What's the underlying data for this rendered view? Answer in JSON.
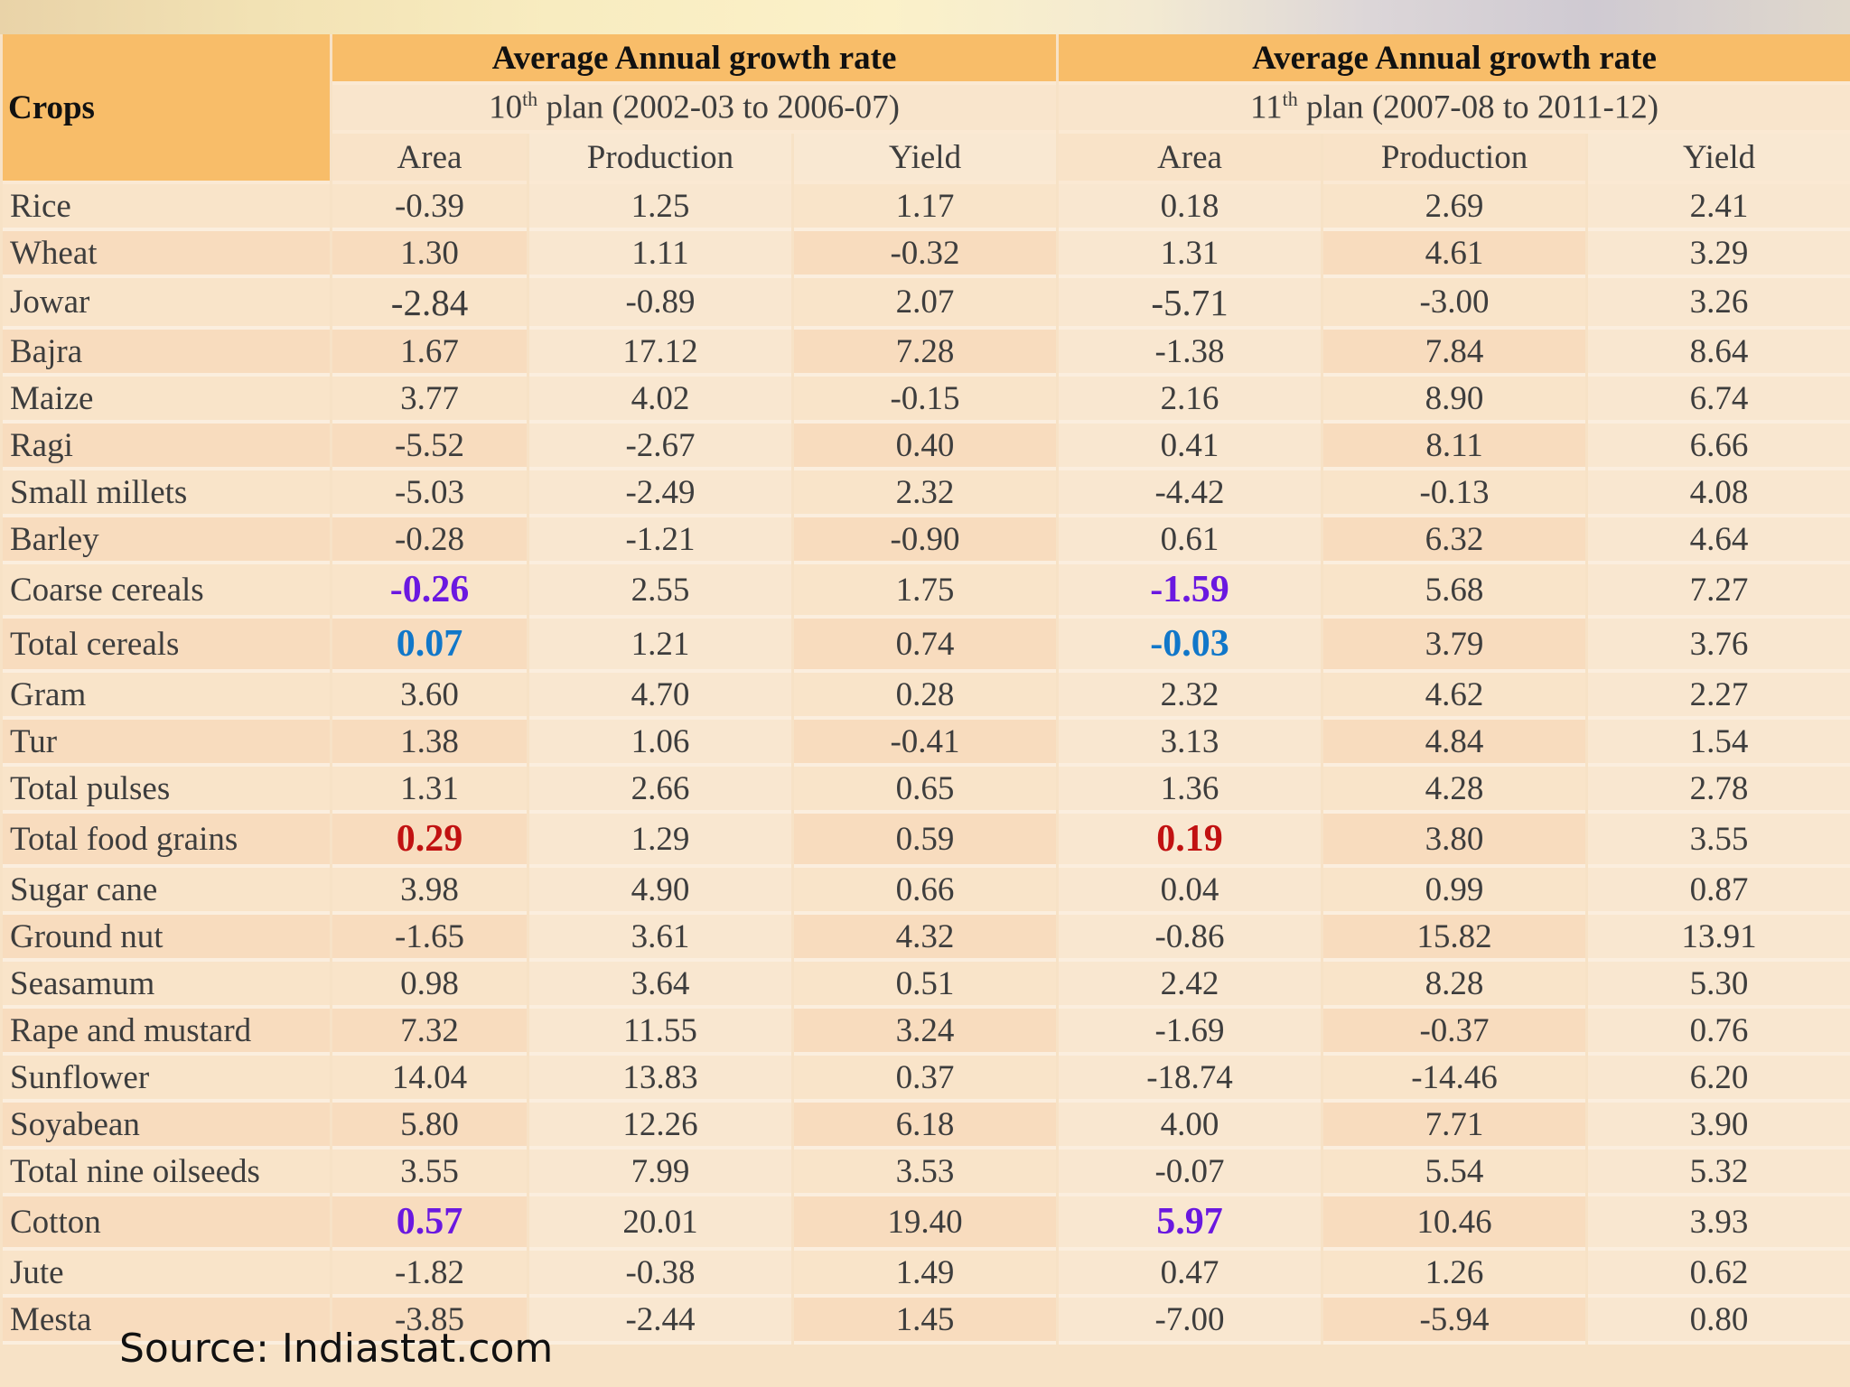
{
  "table": {
    "crops_header": "Crops",
    "groups": [
      {
        "title": "Average Annual growth rate",
        "plan_num": "10",
        "plan_sup": "th",
        "plan_rest": " plan (2002-03 to 2006-07)"
      },
      {
        "title": "Average Annual growth rate",
        "plan_num": "11",
        "plan_sup": "th",
        "plan_rest": " plan (2007-08 to 2011-12)"
      }
    ],
    "columns": [
      "Area",
      "Production",
      "Yield",
      "Area",
      "Production",
      "Yield"
    ],
    "rows": [
      {
        "crop": "Rice",
        "values": [
          "-0.39",
          "1.25",
          "1.17",
          "0.18",
          "2.69",
          "2.41"
        ]
      },
      {
        "crop": "Wheat",
        "values": [
          "1.30",
          "1.11",
          "-0.32",
          "1.31",
          "4.61",
          "3.29"
        ]
      },
      {
        "crop": "Jowar",
        "values": [
          "-2.84",
          "-0.89",
          "2.07",
          "-5.71",
          "-3.00",
          "3.26"
        ]
      },
      {
        "crop": "Bajra",
        "values": [
          "1.67",
          "17.12",
          "7.28",
          "-1.38",
          "7.84",
          "8.64"
        ]
      },
      {
        "crop": "Maize",
        "values": [
          "3.77",
          "4.02",
          "-0.15",
          "2.16",
          "8.90",
          "6.74"
        ]
      },
      {
        "crop": "Ragi",
        "values": [
          "-5.52",
          "-2.67",
          "0.40",
          "0.41",
          "8.11",
          "6.66"
        ]
      },
      {
        "crop": "Small millets",
        "values": [
          "-5.03",
          "-2.49",
          "2.32",
          "-4.42",
          "-0.13",
          "4.08"
        ]
      },
      {
        "crop": "Barley",
        "values": [
          "-0.28",
          "-1.21",
          "-0.90",
          "0.61",
          "6.32",
          "4.64"
        ]
      },
      {
        "crop": "Coarse cereals",
        "values": [
          "-0.26",
          "2.55",
          "1.75",
          "-1.59",
          "5.68",
          "7.27"
        ]
      },
      {
        "crop": "Total cereals",
        "values": [
          "0.07",
          "1.21",
          "0.74",
          "-0.03",
          "3.79",
          "3.76"
        ]
      },
      {
        "crop": "Gram",
        "values": [
          "3.60",
          "4.70",
          "0.28",
          "2.32",
          "4.62",
          "2.27"
        ]
      },
      {
        "crop": "Tur",
        "values": [
          "1.38",
          "1.06",
          "-0.41",
          "3.13",
          "4.84",
          "1.54"
        ]
      },
      {
        "crop": "Total pulses",
        "values": [
          "1.31",
          "2.66",
          "0.65",
          "1.36",
          "4.28",
          "2.78"
        ]
      },
      {
        "crop": "Total food grains",
        "values": [
          "0.29",
          "1.29",
          "0.59",
          "0.19",
          "3.80",
          "3.55"
        ]
      },
      {
        "crop": "Sugar cane",
        "values": [
          "3.98",
          "4.90",
          "0.66",
          "0.04",
          "0.99",
          "0.87"
        ]
      },
      {
        "crop": "Ground nut",
        "values": [
          "-1.65",
          "3.61",
          "4.32",
          "-0.86",
          "15.82",
          "13.91"
        ]
      },
      {
        "crop": "Seasamum",
        "values": [
          "0.98",
          "3.64",
          "0.51",
          "2.42",
          "8.28",
          "5.30"
        ]
      },
      {
        "crop": "Rape and mustard",
        "values": [
          "7.32",
          "11.55",
          "3.24",
          "-1.69",
          "-0.37",
          "0.76"
        ]
      },
      {
        "crop": "Sunflower",
        "values": [
          "14.04",
          "13.83",
          "0.37",
          "-18.74",
          "-14.46",
          "6.20"
        ]
      },
      {
        "crop": "Soyabean",
        "values": [
          "5.80",
          "12.26",
          "6.18",
          "4.00",
          "7.71",
          "3.90"
        ]
      },
      {
        "crop": "Total nine oilseeds",
        "values": [
          "3.55",
          "7.99",
          "3.53",
          "-0.07",
          "5.54",
          "5.32"
        ]
      },
      {
        "crop": "Cotton",
        "values": [
          "0.57",
          "20.01",
          "19.40",
          "5.97",
          "10.46",
          "3.93"
        ]
      },
      {
        "crop": "Jute",
        "values": [
          "-1.82",
          "-0.38",
          "1.49",
          "0.47",
          "1.26",
          "0.62"
        ]
      },
      {
        "crop": "Mesta",
        "values": [
          "-3.85",
          "-2.44",
          "1.45",
          "-7.00",
          "-5.94",
          "0.80"
        ]
      }
    ],
    "highlight_colors": {
      "purple": "#6a18e0",
      "blue": "#1177c9",
      "red": "#c11111"
    }
  },
  "source": "Source: Indiastat.com"
}
